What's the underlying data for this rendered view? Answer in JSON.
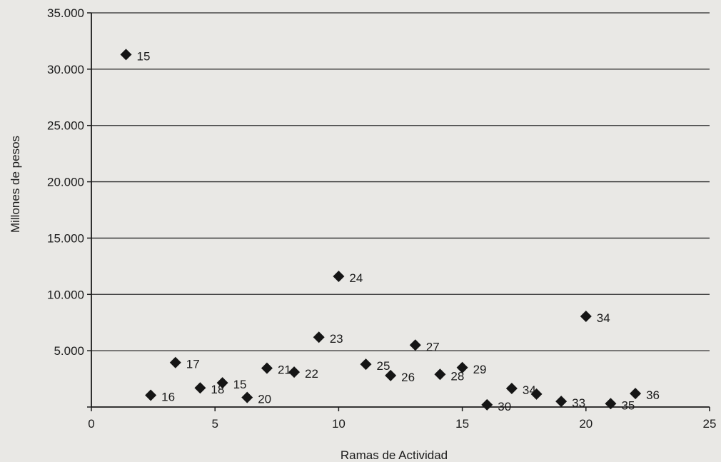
{
  "chart_data": {
    "type": "scatter",
    "xlabel": "Ramas de Actividad",
    "ylabel": "Millones de pesos",
    "xlim": [
      0,
      25
    ],
    "ylim": [
      0,
      35000
    ],
    "x_ticks": [
      {
        "value": 0,
        "label": "0"
      },
      {
        "value": 5,
        "label": "5"
      },
      {
        "value": 10,
        "label": "10"
      },
      {
        "value": 15,
        "label": "15"
      },
      {
        "value": 20,
        "label": "20"
      },
      {
        "value": 25,
        "label": "25"
      }
    ],
    "y_ticks": [
      {
        "value": 0,
        "label": "0"
      },
      {
        "value": 5000,
        "label": "5.000"
      },
      {
        "value": 10000,
        "label": "10.000"
      },
      {
        "value": 15000,
        "label": "15.000"
      },
      {
        "value": 20000,
        "label": "20.000"
      },
      {
        "value": 25000,
        "label": "25.000"
      },
      {
        "value": 30000,
        "label": "30.000"
      },
      {
        "value": 35000,
        "label": "35.000"
      }
    ],
    "grid": "horizontal",
    "marker": "diamond",
    "points": [
      {
        "x": 1.4,
        "y": 31300,
        "label": "15"
      },
      {
        "x": 2.4,
        "y": 1050,
        "label": "16"
      },
      {
        "x": 3.4,
        "y": 3950,
        "label": "17"
      },
      {
        "x": 4.4,
        "y": 1700,
        "label": "18"
      },
      {
        "x": 5.3,
        "y": 2150,
        "label": "15"
      },
      {
        "x": 6.3,
        "y": 850,
        "label": "20"
      },
      {
        "x": 7.1,
        "y": 3450,
        "label": "21"
      },
      {
        "x": 8.2,
        "y": 3100,
        "label": "22"
      },
      {
        "x": 9.2,
        "y": 6200,
        "label": "23"
      },
      {
        "x": 10.0,
        "y": 11600,
        "label": "24"
      },
      {
        "x": 11.1,
        "y": 3800,
        "label": "25"
      },
      {
        "x": 12.1,
        "y": 2800,
        "label": "26"
      },
      {
        "x": 13.1,
        "y": 5500,
        "label": "27"
      },
      {
        "x": 14.1,
        "y": 2900,
        "label": "28"
      },
      {
        "x": 15.0,
        "y": 3500,
        "label": "29"
      },
      {
        "x": 16.0,
        "y": 200,
        "label": "30"
      },
      {
        "x": 17.0,
        "y": 1650,
        "label": "34"
      },
      {
        "x": 18.0,
        "y": 1150,
        "label": ""
      },
      {
        "x": 19.0,
        "y": 500,
        "label": "33"
      },
      {
        "x": 20.0,
        "y": 8050,
        "label": "34"
      },
      {
        "x": 21.0,
        "y": 300,
        "label": "35"
      },
      {
        "x": 22.0,
        "y": 1200,
        "label": "36"
      }
    ]
  }
}
